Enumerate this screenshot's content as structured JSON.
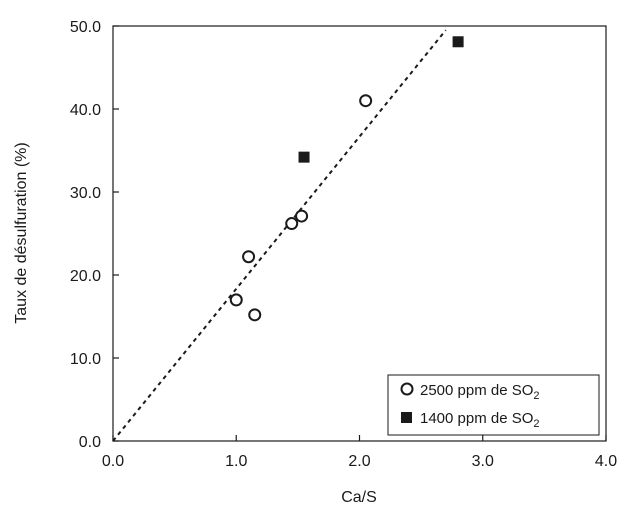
{
  "chart_data": {
    "type": "scatter",
    "title": "",
    "xlabel": "Ca/S",
    "ylabel": "Taux de désulfuration (%)",
    "xlim": [
      0.0,
      4.0
    ],
    "ylim": [
      0.0,
      50.0
    ],
    "x_ticks": [
      "0.0",
      "1.0",
      "2.0",
      "3.0",
      "4.0"
    ],
    "y_ticks": [
      "0.0",
      "10.0",
      "20.0",
      "30.0",
      "40.0",
      "50.0"
    ],
    "grid": false,
    "legend_position": "bottom-right",
    "series": [
      {
        "name": "2500 ppm de SO2",
        "label_main": "2500 ppm de SO",
        "label_sub": "2",
        "marker": "open-circle",
        "points": [
          {
            "x": 1.0,
            "y": 17.0
          },
          {
            "x": 1.1,
            "y": 22.2
          },
          {
            "x": 1.15,
            "y": 15.2
          },
          {
            "x": 1.45,
            "y": 26.2
          },
          {
            "x": 1.53,
            "y": 27.1
          },
          {
            "x": 2.05,
            "y": 41.0
          }
        ]
      },
      {
        "name": "1400 ppm de SO2",
        "label_main": "1400 ppm de SO",
        "label_sub": "2",
        "marker": "filled-square",
        "points": [
          {
            "x": 1.55,
            "y": 34.2
          },
          {
            "x": 2.8,
            "y": 48.1
          }
        ]
      }
    ],
    "trendline": {
      "style": "dotted",
      "x": [
        0.0,
        2.7
      ],
      "y": [
        0.0,
        49.5
      ]
    }
  }
}
